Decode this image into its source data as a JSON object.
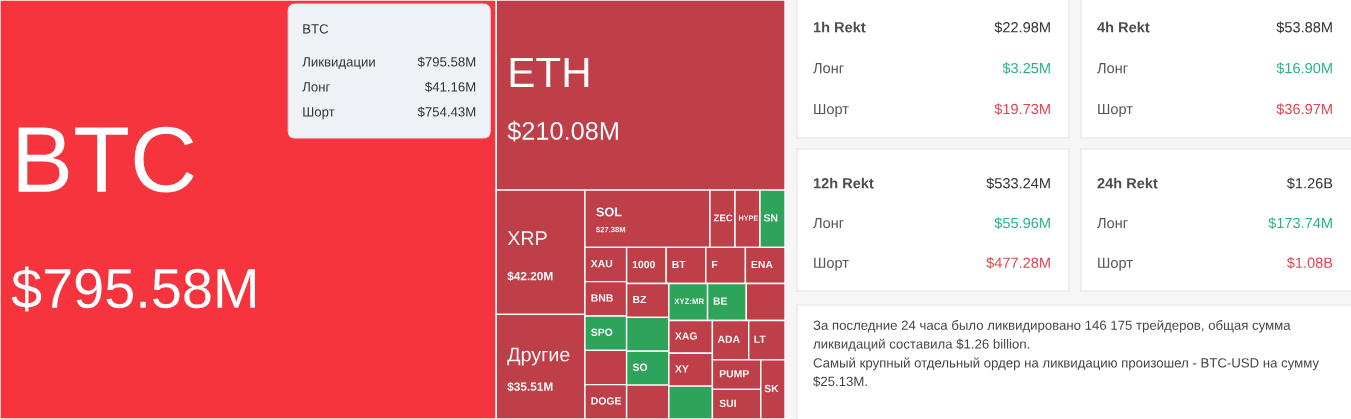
{
  "chart_data": [
    {
      "type": "other",
      "categories": [
        "BTC",
        "ETH",
        "XRP",
        "Другие",
        "SOL",
        "ZEC",
        "HYPE",
        "SN",
        "XAU",
        "BNB",
        "SPO",
        null,
        "DOGE",
        "1000",
        "BT",
        "F",
        "ENA",
        "BZ",
        null,
        "SO",
        null,
        "XYZ:MR",
        "BE",
        null,
        "XAG",
        "XY",
        null,
        "ADA",
        "LT",
        "PUMP",
        "SUI",
        "SK"
      ],
      "values": [
        795.58,
        210.08,
        42.2,
        35.51,
        27.38,
        null,
        null,
        null,
        null,
        null,
        null,
        null,
        null,
        null,
        null,
        null,
        null,
        null,
        null,
        null,
        null,
        null,
        null,
        null,
        null,
        null,
        null,
        null,
        null,
        null,
        null,
        null
      ],
      "value_labels": [
        "$795.58M",
        "$210.08M",
        "$42.20M",
        "$35.51M",
        "$27.38M",
        null,
        null,
        null,
        null,
        null,
        null,
        null,
        null,
        null,
        null,
        null,
        null,
        null,
        null,
        null,
        null,
        null,
        null,
        null,
        null,
        null,
        null,
        null,
        null,
        null,
        null,
        null
      ],
      "colors": [
        "#f5343e",
        "#bf3f49",
        "#bf3f49",
        "#bf3f49",
        "#bf3f49",
        "#bf3f49",
        "#bf3f49",
        "#2ea35a",
        "#bf3f49",
        "#bf3f49",
        "#2ea35a",
        "#bf3f49",
        "#bf3f49",
        "#bf3f49",
        "#bf3f49",
        "#bf3f49",
        "#bf3f49",
        "#bf3f49",
        "#2ea35a",
        "#2ea35a",
        "#bf3f49",
        "#2ea35a",
        "#2ea35a",
        "#bf3f49",
        "#bf3f49",
        "#bf3f49",
        "#2ea35a",
        "#bf3f49",
        "#bf3f49",
        "#bf3f49",
        "#bf3f49",
        "#bf3f49"
      ],
      "annotations": [
        "BTC",
        "Ликвидации",
        "$795.58M",
        "Лонг",
        "$41.16M",
        "Шорт",
        "$754.43M"
      ]
    },
    {
      "type": "other",
      "title": "1h Rekt",
      "annotations": [
        "$22.98M"
      ],
      "categories": [
        "Лонг",
        "Шорт"
      ],
      "value_labels": [
        "$3.25M",
        "$19.73M"
      ]
    },
    {
      "type": "other",
      "title": "4h Rekt",
      "annotations": [
        "$53.88M"
      ],
      "categories": [
        "Лонг",
        "Шорт"
      ],
      "value_labels": [
        "$16.90M",
        "$36.97M"
      ]
    },
    {
      "type": "other",
      "title": "12h Rekt",
      "annotations": [
        "$533.24M"
      ],
      "categories": [
        "Лонг",
        "Шорт"
      ],
      "value_labels": [
        "$55.96M",
        "$477.28M"
      ]
    },
    {
      "type": "other",
      "title": "24h Rekt",
      "annotations": [
        "$1.26B"
      ],
      "categories": [
        "Лонг",
        "Шорт"
      ],
      "value_labels": [
        "$173.74M",
        "$1.08B"
      ]
    },
    {
      "type": "other",
      "annotations": [
        "За последние 24 часа было ликвидировано 146 175 трейдеров, общая сумма ликвидаций составила $1.26 billion.",
        "Самый крупный отдельный ордер на ликвидацию произошел - BTC-USD на сумму $25.13M."
      ]
    }
  ]
}
